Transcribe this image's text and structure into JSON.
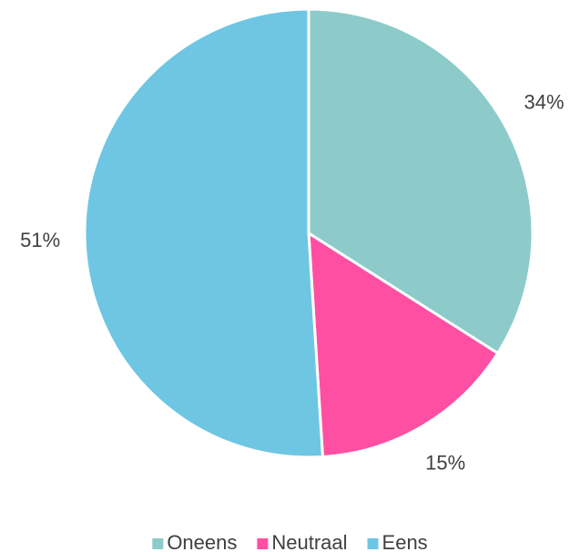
{
  "chart_data": {
    "type": "pie",
    "categories": [
      "Oneens",
      "Neutraal",
      "Eens"
    ],
    "values": [
      34,
      15,
      51
    ],
    "value_labels": [
      "34%",
      "15%",
      "51%"
    ],
    "colors": [
      "#8ccbc9",
      "#ff4fa3",
      "#6ec6e3"
    ],
    "legend": "bottom"
  }
}
